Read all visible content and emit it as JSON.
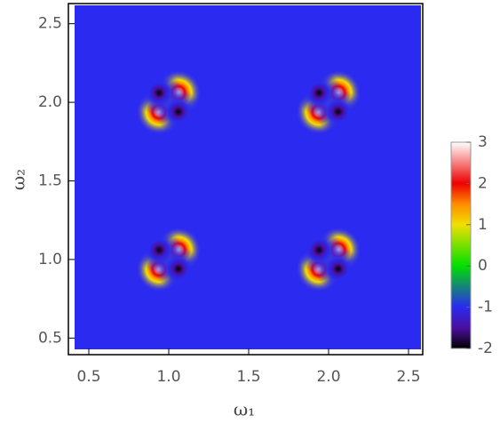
{
  "chart_data": {
    "type": "density",
    "xlabel": "ω₁",
    "ylabel": "ω₂",
    "xlim": [
      0.4,
      2.6
    ],
    "ylim": [
      0.4,
      2.6
    ],
    "xticks": [
      0.5,
      1.0,
      1.5,
      2.0,
      2.5
    ],
    "yticks": [
      0.5,
      1.0,
      1.5,
      2.0,
      2.5
    ],
    "points": {
      "x": [
        0.94,
        1.06,
        0.94,
        1.06,
        1.94,
        2.06,
        1.94,
        2.06,
        0.94,
        1.06,
        0.94,
        1.06,
        1.94,
        2.06,
        1.94,
        2.06
      ],
      "y": [
        0.94,
        1.06,
        1.06,
        0.94,
        0.94,
        1.06,
        1.06,
        0.94,
        1.94,
        2.06,
        2.06,
        1.94,
        1.94,
        2.06,
        2.06,
        1.94
      ],
      "values": [
        3,
        3,
        -2,
        -2,
        3,
        3,
        -2,
        -2,
        3,
        3,
        -2,
        -2,
        3,
        3,
        -2,
        -2
      ]
    },
    "colorbar": {
      "lim": [
        -2,
        3
      ],
      "ticks": [
        -2,
        -1,
        0,
        1,
        2,
        3
      ],
      "scale": [
        {
          "value": -2,
          "color": "#000000"
        },
        {
          "value": -1.5,
          "color": "#4b0fa0"
        },
        {
          "value": -1,
          "color": "#2a2af0"
        },
        {
          "value": 0,
          "color": "#00e000"
        },
        {
          "value": 1,
          "color": "#f0e000"
        },
        {
          "value": 1.5,
          "color": "#ff8c00"
        },
        {
          "value": 2,
          "color": "#ee0000"
        },
        {
          "value": 3,
          "color": "#ffffff"
        }
      ]
    }
  }
}
